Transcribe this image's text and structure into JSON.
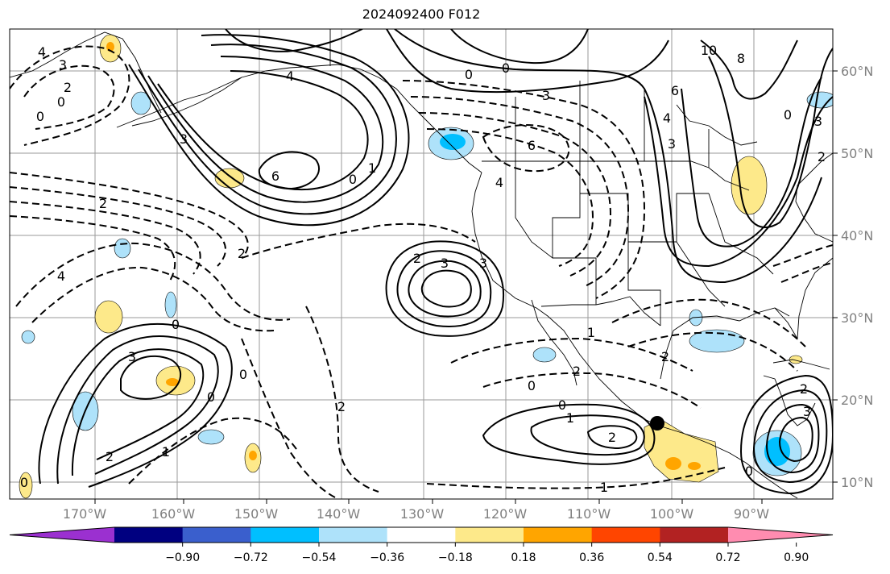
{
  "chart_data": {
    "type": "contour-map",
    "title": "2024092400 F012",
    "lon_ticks": [
      "170°W",
      "160°W",
      "150°W",
      "140°W",
      "130°W",
      "120°W",
      "110°W",
      "100°W",
      "90°W"
    ],
    "lat_ticks": [
      "60°N",
      "50°N",
      "40°N",
      "30°N",
      "20°N",
      "10°N"
    ],
    "colorbar": {
      "ticks": [
        "−0.90",
        "−0.72",
        "−0.54",
        "−0.36",
        "−0.18",
        "0.18",
        "0.36",
        "0.54",
        "0.72",
        "0.90"
      ],
      "colors": [
        "#9b30d0",
        "#000080",
        "#3a5fcd",
        "#00bfff",
        "#aee2fa",
        "#ffffff",
        "#fde98a",
        "#ffa500",
        "#ff4500",
        "#b22222",
        "#ff8cb0"
      ]
    },
    "contour_labels": [
      {
        "text": "4"
      },
      {
        "text": "3"
      },
      {
        "text": "2"
      },
      {
        "text": "0"
      },
      {
        "text": "0"
      },
      {
        "text": "4"
      },
      {
        "text": "3"
      },
      {
        "text": "6"
      },
      {
        "text": "0"
      },
      {
        "text": "1"
      },
      {
        "text": "3"
      },
      {
        "text": "2"
      },
      {
        "text": "0"
      },
      {
        "text": "0"
      },
      {
        "text": "3"
      },
      {
        "text": "6"
      },
      {
        "text": "4"
      },
      {
        "text": "10"
      },
      {
        "text": "8"
      },
      {
        "text": "6"
      },
      {
        "text": "4"
      },
      {
        "text": "3"
      },
      {
        "text": "0"
      },
      {
        "text": "3"
      },
      {
        "text": "2"
      },
      {
        "text": "2"
      },
      {
        "text": "4"
      },
      {
        "text": "2"
      },
      {
        "text": "3"
      },
      {
        "text": "0"
      },
      {
        "text": "3"
      },
      {
        "text": "0"
      },
      {
        "text": "0"
      },
      {
        "text": "2"
      },
      {
        "text": "1"
      },
      {
        "text": "2"
      },
      {
        "text": "1"
      },
      {
        "text": "2"
      },
      {
        "text": "0"
      },
      {
        "text": "0"
      },
      {
        "text": "1"
      },
      {
        "text": "2"
      },
      {
        "text": "1"
      },
      {
        "text": "2"
      },
      {
        "text": "2"
      },
      {
        "text": "3"
      },
      {
        "text": "0"
      },
      {
        "text": "0"
      }
    ]
  }
}
